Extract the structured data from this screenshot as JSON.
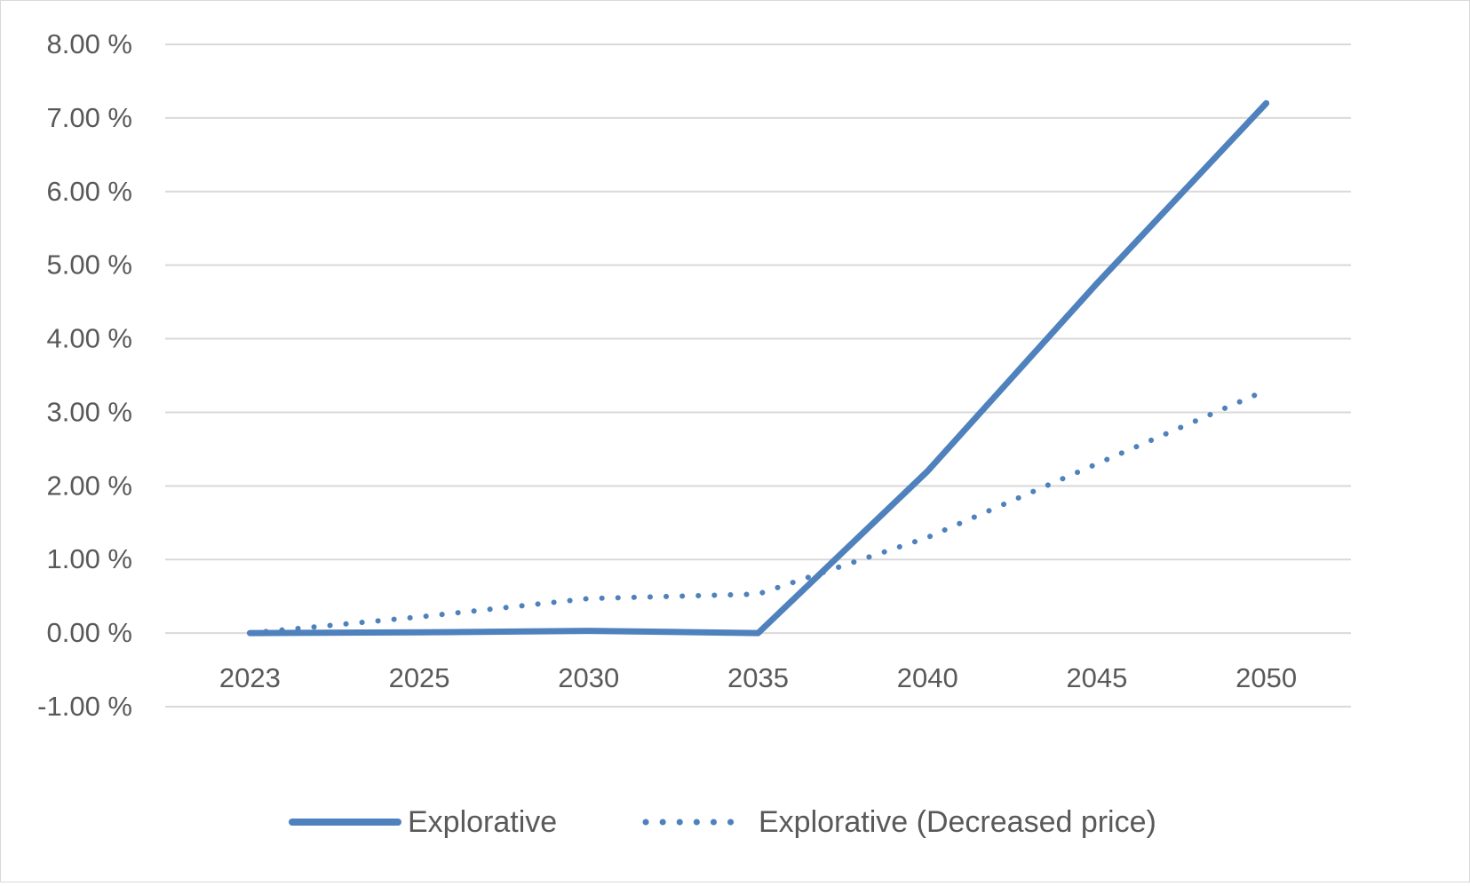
{
  "chart_data": {
    "type": "line",
    "categories": [
      "2023",
      "2025",
      "2030",
      "2035",
      "2040",
      "2045",
      "2050"
    ],
    "series": [
      {
        "name": "Explorative",
        "values": [
          0.0,
          0.01,
          0.03,
          0.0,
          2.2,
          4.75,
          7.2
        ],
        "style": "solid"
      },
      {
        "name": "Explorative (Decreased price)",
        "values": [
          0.0,
          0.22,
          0.47,
          0.53,
          1.3,
          2.3,
          3.3
        ],
        "style": "dotted"
      }
    ],
    "ylim": [
      -1,
      8
    ],
    "ytick_values": [
      -1,
      0,
      1,
      2,
      3,
      4,
      5,
      6,
      7,
      8
    ],
    "ytick_labels": [
      "-1.00 %",
      "0.00 %",
      "1.00 %",
      "2.00 %",
      "3.00 %",
      "4.00 %",
      "5.00 %",
      "6.00 %",
      "7.00 %",
      "8.00 %"
    ],
    "title": "",
    "xlabel": "",
    "ylabel": "",
    "grid": true,
    "legend_position": "bottom",
    "colors": {
      "series": "#4f81bd",
      "grid": "#d9d9d9",
      "text": "#595959"
    }
  }
}
